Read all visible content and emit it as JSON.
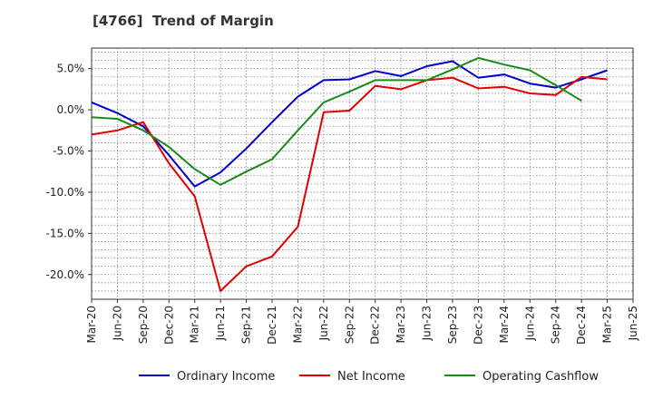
{
  "chart_data": {
    "type": "line",
    "title": "[4766]  Trend of Margin",
    "xlabel": "",
    "ylabel": "",
    "categories": [
      "Mar-20",
      "Jun-20",
      "Sep-20",
      "Dec-20",
      "Mar-21",
      "Jun-21",
      "Sep-21",
      "Dec-21",
      "Mar-22",
      "Jun-22",
      "Sep-22",
      "Dec-22",
      "Mar-23",
      "Jun-23",
      "Sep-23",
      "Dec-23",
      "Mar-24",
      "Jun-24",
      "Sep-24",
      "Dec-24",
      "Mar-25",
      "Jun-25"
    ],
    "y_ticks": [
      5.0,
      0.0,
      -5.0,
      -10.0,
      -15.0,
      -20.0
    ],
    "y_tick_labels": [
      "5.0%",
      "0.0%",
      "-5.0%",
      "-10.0%",
      "-15.0%",
      "-20.0%"
    ],
    "ylim": [
      -23.0,
      7.5
    ],
    "grid": true,
    "legend_position": "bottom",
    "series": [
      {
        "name": "Ordinary Income",
        "color": "#0000cc",
        "values": [
          0.9,
          -0.4,
          -2.0,
          -5.5,
          -9.3,
          -7.6,
          -4.7,
          -1.5,
          1.6,
          3.6,
          3.7,
          4.7,
          4.1,
          5.3,
          5.9,
          3.9,
          4.3,
          3.2,
          2.7,
          3.7,
          4.8,
          null
        ]
      },
      {
        "name": "Net Income",
        "color": "#e00000",
        "values": [
          -3.0,
          -2.5,
          -1.5,
          -6.5,
          -10.5,
          -22.0,
          -19.0,
          -17.8,
          -14.2,
          -0.3,
          -0.1,
          2.9,
          2.5,
          3.6,
          3.9,
          2.6,
          2.8,
          2.0,
          1.8,
          4.0,
          3.7,
          null
        ]
      },
      {
        "name": "Operating Cashflow",
        "color": "#1a8a1a",
        "values": [
          -0.9,
          -1.1,
          -2.5,
          -4.5,
          -7.2,
          -9.1,
          -7.5,
          -6.0,
          -2.5,
          0.9,
          2.2,
          3.6,
          3.6,
          3.6,
          4.9,
          6.3,
          5.5,
          4.8,
          3.0,
          1.1,
          null,
          null
        ]
      }
    ]
  }
}
